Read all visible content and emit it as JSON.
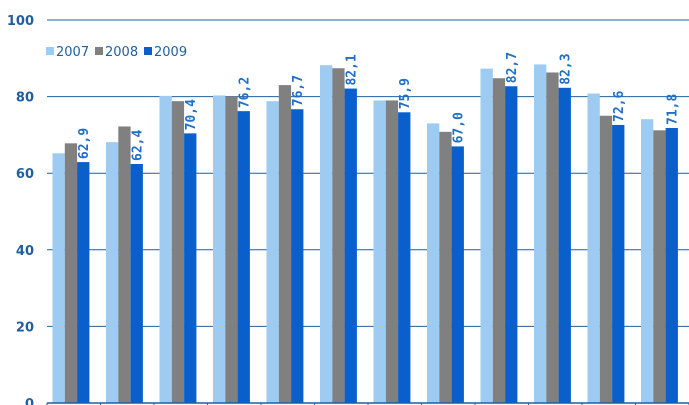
{
  "chart_data": {
    "type": "bar",
    "categories": [
      "",
      "",
      "",
      "",
      "",
      "",
      "",
      "",
      "",
      "",
      "",
      ""
    ],
    "series": [
      {
        "name": "2007",
        "color": "#9ecbf2",
        "values": [
          65.2,
          68.1,
          80.2,
          80.3,
          78.8,
          88.2,
          79.0,
          73.0,
          87.3,
          88.4,
          80.8,
          74.1
        ]
      },
      {
        "name": "2008",
        "color": "#808080",
        "values": [
          67.8,
          72.2,
          78.8,
          80.0,
          83.0,
          87.4,
          79.0,
          70.8,
          84.8,
          86.3,
          75.0,
          71.2
        ]
      },
      {
        "name": "2009",
        "color": "#0a5fcc",
        "values": [
          62.9,
          62.4,
          70.4,
          76.2,
          76.7,
          82.1,
          75.9,
          67.0,
          82.7,
          82.3,
          72.6,
          71.8
        ]
      }
    ],
    "data_labels": [
      "62,9",
      "62,4",
      "70,4",
      "76,2",
      "76,7",
      "82,1",
      "75,9",
      "67,0",
      "82,7",
      "82,3",
      "72,6",
      "71,8"
    ],
    "yticks": [
      "0",
      "20",
      "40",
      "60",
      "80",
      "100"
    ],
    "ylim": [
      0,
      100
    ],
    "grid": true,
    "legend_position": "top-left",
    "title": "",
    "xlabel": "",
    "ylabel": "",
    "colors": {
      "axis": "#1f5f9f",
      "grid": "#1f5f9f",
      "label": "#1f6fc6"
    }
  }
}
